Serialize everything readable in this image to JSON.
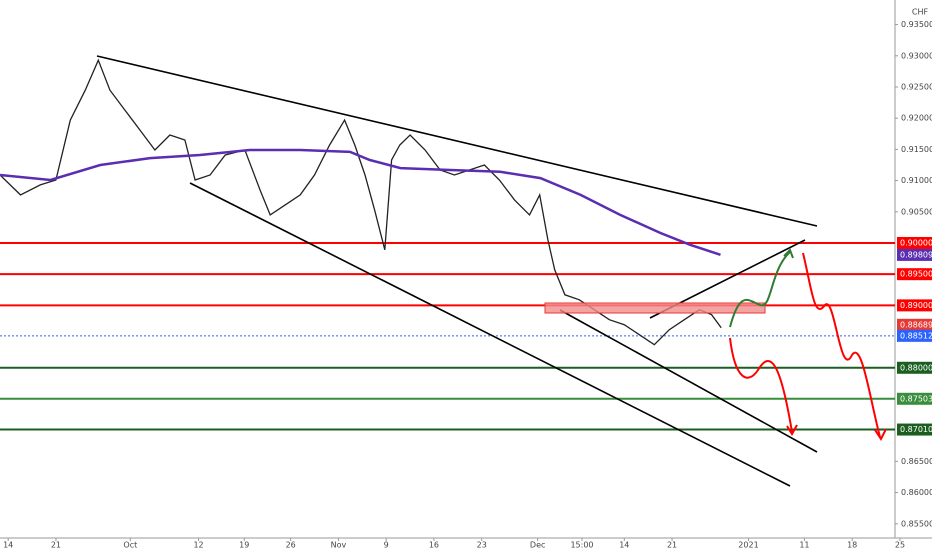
{
  "chart_data": {
    "type": "line",
    "currency": "CHF",
    "xlim": [
      -1.2,
      131
    ],
    "ylim": [
      0.85272,
      0.93894
    ],
    "xticks": [
      {
        "value": 0,
        "label": "14"
      },
      {
        "value": 7,
        "label": "21"
      },
      {
        "value": 17.9,
        "label": "Oct"
      },
      {
        "value": 27.9,
        "label": "12"
      },
      {
        "value": 34.6,
        "label": "19"
      },
      {
        "value": 41.4,
        "label": "26"
      },
      {
        "value": 48.4,
        "label": "Nov"
      },
      {
        "value": 55.4,
        "label": "9"
      },
      {
        "value": 62.4,
        "label": "16"
      },
      {
        "value": 69.4,
        "label": "23"
      },
      {
        "value": 77.6,
        "label": "Dec"
      },
      {
        "value": 84.1,
        "label": "15:00"
      },
      {
        "value": 90.3,
        "label": "14"
      },
      {
        "value": 97.3,
        "label": "21"
      },
      {
        "value": 108.5,
        "label": "2021"
      },
      {
        "value": 116.7,
        "label": "11"
      },
      {
        "value": 123.7,
        "label": "18"
      },
      {
        "value": 130.7,
        "label": "25"
      }
    ],
    "yticks": [
      {
        "value": 0.935,
        "label": "0.93500"
      },
      {
        "value": 0.93,
        "label": "0.93000"
      },
      {
        "value": 0.925,
        "label": "0.92500"
      },
      {
        "value": 0.92,
        "label": "0.92000"
      },
      {
        "value": 0.915,
        "label": "0.91500"
      },
      {
        "value": 0.91,
        "label": "0.91000"
      },
      {
        "value": 0.905,
        "label": "0.90500"
      },
      {
        "value": 0.865,
        "label": "0.86500"
      },
      {
        "value": 0.86,
        "label": "0.86000"
      },
      {
        "value": 0.855,
        "label": "0.85500"
      }
    ],
    "series": [
      {
        "color": "#222222",
        "x": [
          -1.2,
          1.8,
          4.7,
          7.0,
          9.1,
          11.3,
          13.2,
          14.9,
          17.1,
          19.3,
          21.5,
          23.7,
          25.9,
          27.4,
          29.6,
          31.8,
          34.7,
          36.9,
          38.4,
          40.6,
          42.8,
          44.9,
          47.1,
          49.3,
          50.8,
          52.3,
          53.7,
          55.2,
          56.2,
          57.4,
          58.9,
          61.1,
          63.3,
          65.4,
          67.6,
          69.8,
          72.0,
          74.2,
          76.4,
          77.9,
          79.1,
          80.1,
          81.6,
          83.7,
          85.9,
          88.1,
          90.3,
          92.5,
          94.7,
          96.9,
          99.1,
          101.3,
          103.1,
          104.5
        ],
        "values": [
          0.9109,
          0.9077,
          0.9093,
          0.9101,
          0.9197,
          0.9245,
          0.9293,
          0.9245,
          0.9213,
          0.9181,
          0.9149,
          0.9173,
          0.9165,
          0.9101,
          0.9109,
          0.9141,
          0.9149,
          0.9085,
          0.9045,
          0.9061,
          0.9077,
          0.9109,
          0.9157,
          0.9197,
          0.9157,
          0.9109,
          0.9053,
          0.8989,
          0.9133,
          0.9157,
          0.9173,
          0.9149,
          0.9117,
          0.9109,
          0.9117,
          0.9125,
          0.9101,
          0.9069,
          0.9045,
          0.9077,
          0.9005,
          0.8957,
          0.8917,
          0.8909,
          0.8893,
          0.8877,
          0.8869,
          0.8853,
          0.8837,
          0.8861,
          0.8877,
          0.8893,
          0.8885,
          0.8864
        ]
      },
      {
        "color": "#5b2db0",
        "x": [
          -1.2,
          6.2,
          13.5,
          20.8,
          28.1,
          35.4,
          42.8,
          50.1,
          53.0,
          57.5,
          64.8,
          72.1,
          78.0,
          83.9,
          89.7,
          95.6,
          100.0,
          104.4
        ],
        "values": [
          0.9109,
          0.9101,
          0.9125,
          0.9136,
          0.9141,
          0.9149,
          0.9149,
          0.9146,
          0.9133,
          0.912,
          0.9117,
          0.9114,
          0.9104,
          0.9077,
          0.9045,
          0.9016,
          0.8997,
          0.8981
        ]
      }
    ],
    "levels": [
      {
        "value": 0.9,
        "label": "0.90000",
        "color": "#ff0000"
      },
      {
        "value": 0.895,
        "label": "0.89500",
        "color": "#ff0000"
      },
      {
        "value": 0.89,
        "label": "0.89000",
        "color": "#ff0000"
      },
      {
        "value": 0.88,
        "label": "0.88000",
        "color": "#1b5e20"
      },
      {
        "value": 0.87503,
        "label": "0.87503",
        "color": "#388e3c"
      },
      {
        "value": 0.8701,
        "label": "0.87010",
        "color": "#1b5e20"
      }
    ],
    "tags": [
      {
        "value": 0.89809,
        "label": "0.89809",
        "color": "#5b2db0"
      },
      {
        "value": 0.88689,
        "label": "0.88689",
        "color": "#e53935"
      },
      {
        "value": 0.88512,
        "label": "0.88512",
        "color": "#2962ff"
      }
    ]
  }
}
